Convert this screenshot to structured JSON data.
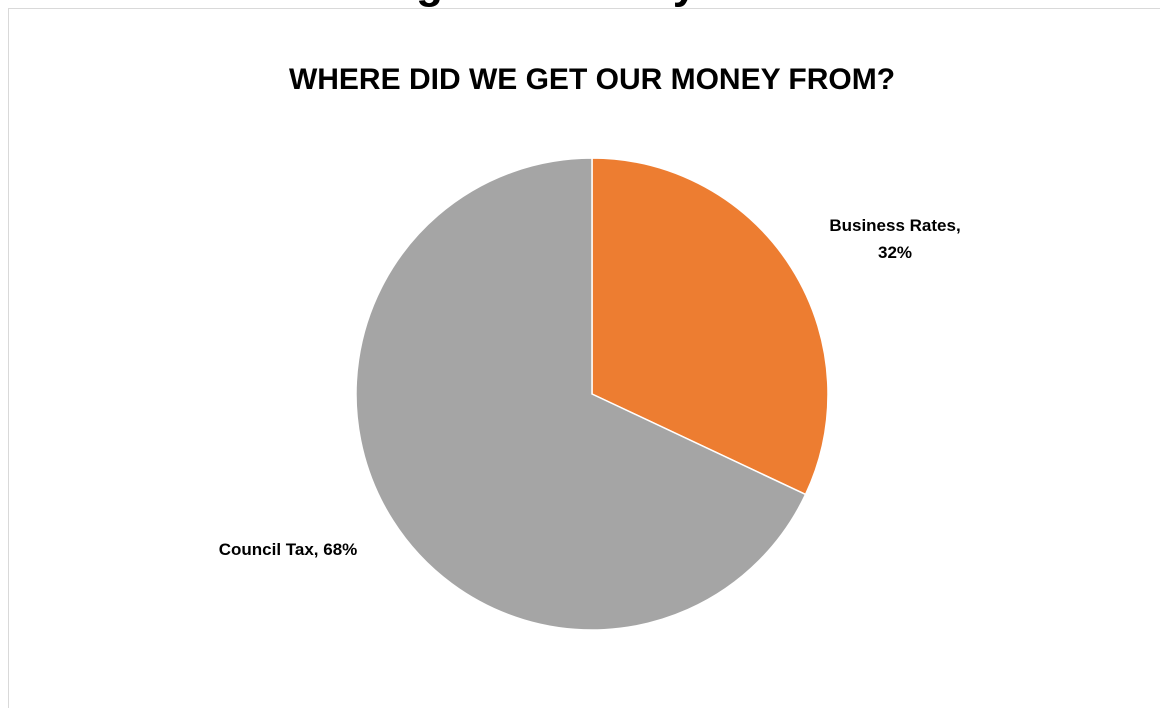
{
  "page_heading_partial": "Funding for Our Key Services",
  "chart_data": {
    "type": "pie",
    "title": "WHERE DID WE GET OUR MONEY FROM?",
    "start_angle_deg": 0,
    "direction": "clockwise",
    "slices": [
      {
        "name": "Business Rates",
        "value": 32,
        "label": [
          "Business Rates,",
          "32%"
        ],
        "color": "#ED7D31"
      },
      {
        "name": "Council Tax",
        "value": 68,
        "label": [
          "Council Tax, 68%"
        ],
        "color": "#A5A5A5"
      }
    ],
    "legend": "none"
  }
}
